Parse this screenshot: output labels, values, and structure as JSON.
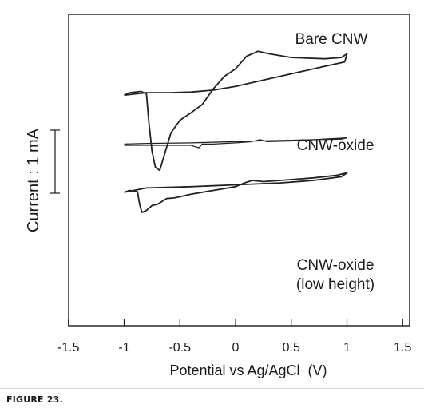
{
  "chart_data": {
    "type": "line",
    "xlabel": "Potential vs Ag/AgCl  (V)",
    "ylabel": "Current : 1 mA",
    "xlim": [
      -1.5,
      1.5
    ],
    "xticks": [
      "-1.5",
      "-1",
      "-0.5",
      "0",
      "0.5",
      "1",
      "1.5"
    ],
    "scale_bar": "1 mA",
    "grid": false,
    "series": [
      {
        "name": "Bare CNW",
        "label_lines": [
          "Bare CNW"
        ],
        "color": "#222222",
        "points": [
          [
            -1.0,
            0.0
          ],
          [
            -0.7,
            0.0
          ],
          [
            -0.4,
            0.0
          ],
          [
            -0.33,
            -0.04
          ],
          [
            -0.3,
            0.02
          ],
          [
            -0.2,
            0.02
          ],
          [
            0.0,
            0.04
          ],
          [
            0.15,
            0.06
          ],
          [
            0.22,
            0.09
          ],
          [
            0.28,
            0.06
          ],
          [
            0.5,
            0.07
          ],
          [
            0.8,
            0.1
          ],
          [
            1.0,
            0.12
          ],
          [
            0.95,
            0.1
          ],
          [
            0.7,
            0.09
          ],
          [
            0.5,
            0.08
          ],
          [
            0.2,
            0.07
          ],
          [
            0.0,
            0.06
          ],
          [
            -0.4,
            0.04
          ],
          [
            -0.8,
            0.03
          ],
          [
            -1.0,
            0.02
          ]
        ]
      },
      {
        "name": "CNW-oxide",
        "label_lines": [
          "CNW-oxide"
        ],
        "color": "#222222",
        "points": [
          [
            -1.0,
            0.8
          ],
          [
            -0.95,
            0.84
          ],
          [
            -0.85,
            0.86
          ],
          [
            -0.8,
            0.82
          ],
          [
            -0.78,
            0.4
          ],
          [
            -0.75,
            -0.1
          ],
          [
            -0.72,
            -0.35
          ],
          [
            -0.68,
            -0.4
          ],
          [
            -0.63,
            -0.1
          ],
          [
            -0.58,
            0.2
          ],
          [
            -0.5,
            0.4
          ],
          [
            -0.4,
            0.52
          ],
          [
            -0.3,
            0.65
          ],
          [
            -0.2,
            0.9
          ],
          [
            -0.1,
            1.1
          ],
          [
            0.0,
            1.22
          ],
          [
            0.1,
            1.42
          ],
          [
            0.2,
            1.5
          ],
          [
            0.3,
            1.46
          ],
          [
            0.5,
            1.4
          ],
          [
            0.8,
            1.38
          ],
          [
            0.95,
            1.4
          ],
          [
            1.0,
            1.46
          ],
          [
            0.98,
            1.33
          ],
          [
            0.8,
            1.26
          ],
          [
            0.6,
            1.18
          ],
          [
            0.4,
            1.1
          ],
          [
            0.2,
            1.02
          ],
          [
            0.0,
            0.94
          ],
          [
            -0.2,
            0.88
          ],
          [
            -0.4,
            0.85
          ],
          [
            -0.6,
            0.84
          ],
          [
            -0.8,
            0.84
          ],
          [
            -0.9,
            0.82
          ],
          [
            -1.0,
            0.8
          ]
        ]
      },
      {
        "name": "CNW-oxide (low height)",
        "label_lines": [
          "CNW-oxide",
          "(low height)"
        ],
        "color": "#222222",
        "points": [
          [
            -1.0,
            -0.75
          ],
          [
            -0.95,
            -0.72
          ],
          [
            -0.88,
            -0.74
          ],
          [
            -0.86,
            -0.95
          ],
          [
            -0.84,
            -1.07
          ],
          [
            -0.8,
            -1.04
          ],
          [
            -0.75,
            -0.96
          ],
          [
            -0.7,
            -0.94
          ],
          [
            -0.62,
            -0.85
          ],
          [
            -0.55,
            -0.84
          ],
          [
            -0.4,
            -0.78
          ],
          [
            -0.2,
            -0.72
          ],
          [
            0.0,
            -0.66
          ],
          [
            0.08,
            -0.6
          ],
          [
            0.15,
            -0.56
          ],
          [
            0.25,
            -0.58
          ],
          [
            0.4,
            -0.56
          ],
          [
            0.7,
            -0.52
          ],
          [
            0.9,
            -0.48
          ],
          [
            1.0,
            -0.44
          ],
          [
            0.95,
            -0.5
          ],
          [
            0.7,
            -0.56
          ],
          [
            0.4,
            -0.6
          ],
          [
            0.0,
            -0.63
          ],
          [
            -0.4,
            -0.66
          ],
          [
            -0.8,
            -0.68
          ],
          [
            -1.0,
            -0.75
          ]
        ]
      }
    ]
  },
  "caption": "FIGURE 23."
}
